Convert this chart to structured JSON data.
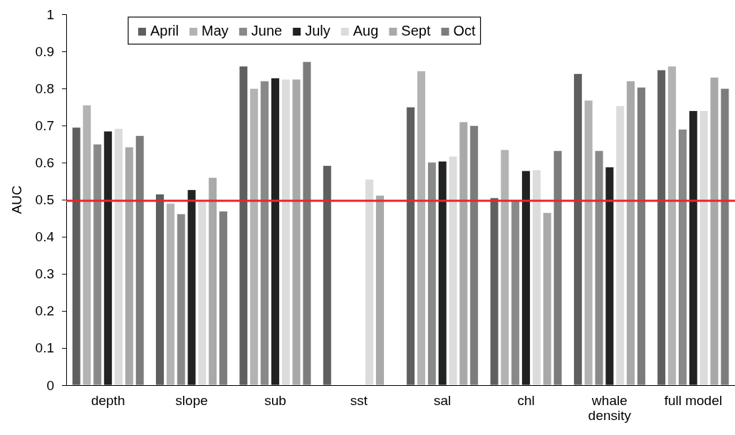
{
  "chart_data": {
    "type": "bar",
    "ylabel": "AUC",
    "categories": [
      "depth",
      "slope",
      "sub",
      "sst",
      "sal",
      "chl",
      "whale density",
      "full model"
    ],
    "series": [
      {
        "name": "April",
        "color": "#5f5f5f",
        "values": [
          0.695,
          0.515,
          0.86,
          0.592,
          0.75,
          0.505,
          0.84,
          0.85
        ]
      },
      {
        "name": "May",
        "color": "#b3b3b3",
        "values": [
          0.755,
          0.49,
          0.8,
          null,
          0.847,
          0.635,
          0.768,
          0.86
        ]
      },
      {
        "name": "June",
        "color": "#898989",
        "values": [
          0.65,
          0.462,
          0.82,
          null,
          0.601,
          0.497,
          0.632,
          0.69
        ]
      },
      {
        "name": "July",
        "color": "#212322",
        "values": [
          0.685,
          0.527,
          0.828,
          null,
          0.604,
          0.578,
          0.588,
          0.74
        ]
      },
      {
        "name": "Aug",
        "color": "#dcdcdc",
        "values": [
          0.692,
          0.495,
          0.825,
          0.555,
          0.617,
          0.58,
          0.753,
          0.74
        ]
      },
      {
        "name": "Sept",
        "color": "#a9a9a9",
        "values": [
          0.642,
          0.56,
          0.825,
          0.512,
          0.71,
          0.465,
          0.82,
          0.83
        ]
      },
      {
        "name": "Oct",
        "color": "#7c7c7c",
        "values": [
          0.673,
          0.469,
          0.872,
          null,
          0.7,
          0.632,
          0.803,
          0.8
        ]
      }
    ],
    "ylim": [
      0,
      1
    ],
    "yticks": [
      0,
      0.1,
      0.2,
      0.3,
      0.4,
      0.5,
      0.6,
      0.7,
      0.8,
      0.9,
      1
    ],
    "ref_lines": [
      {
        "axis": "y",
        "value": 0.497,
        "color": "#e8262b"
      }
    ],
    "grid": false,
    "legend": "top"
  }
}
